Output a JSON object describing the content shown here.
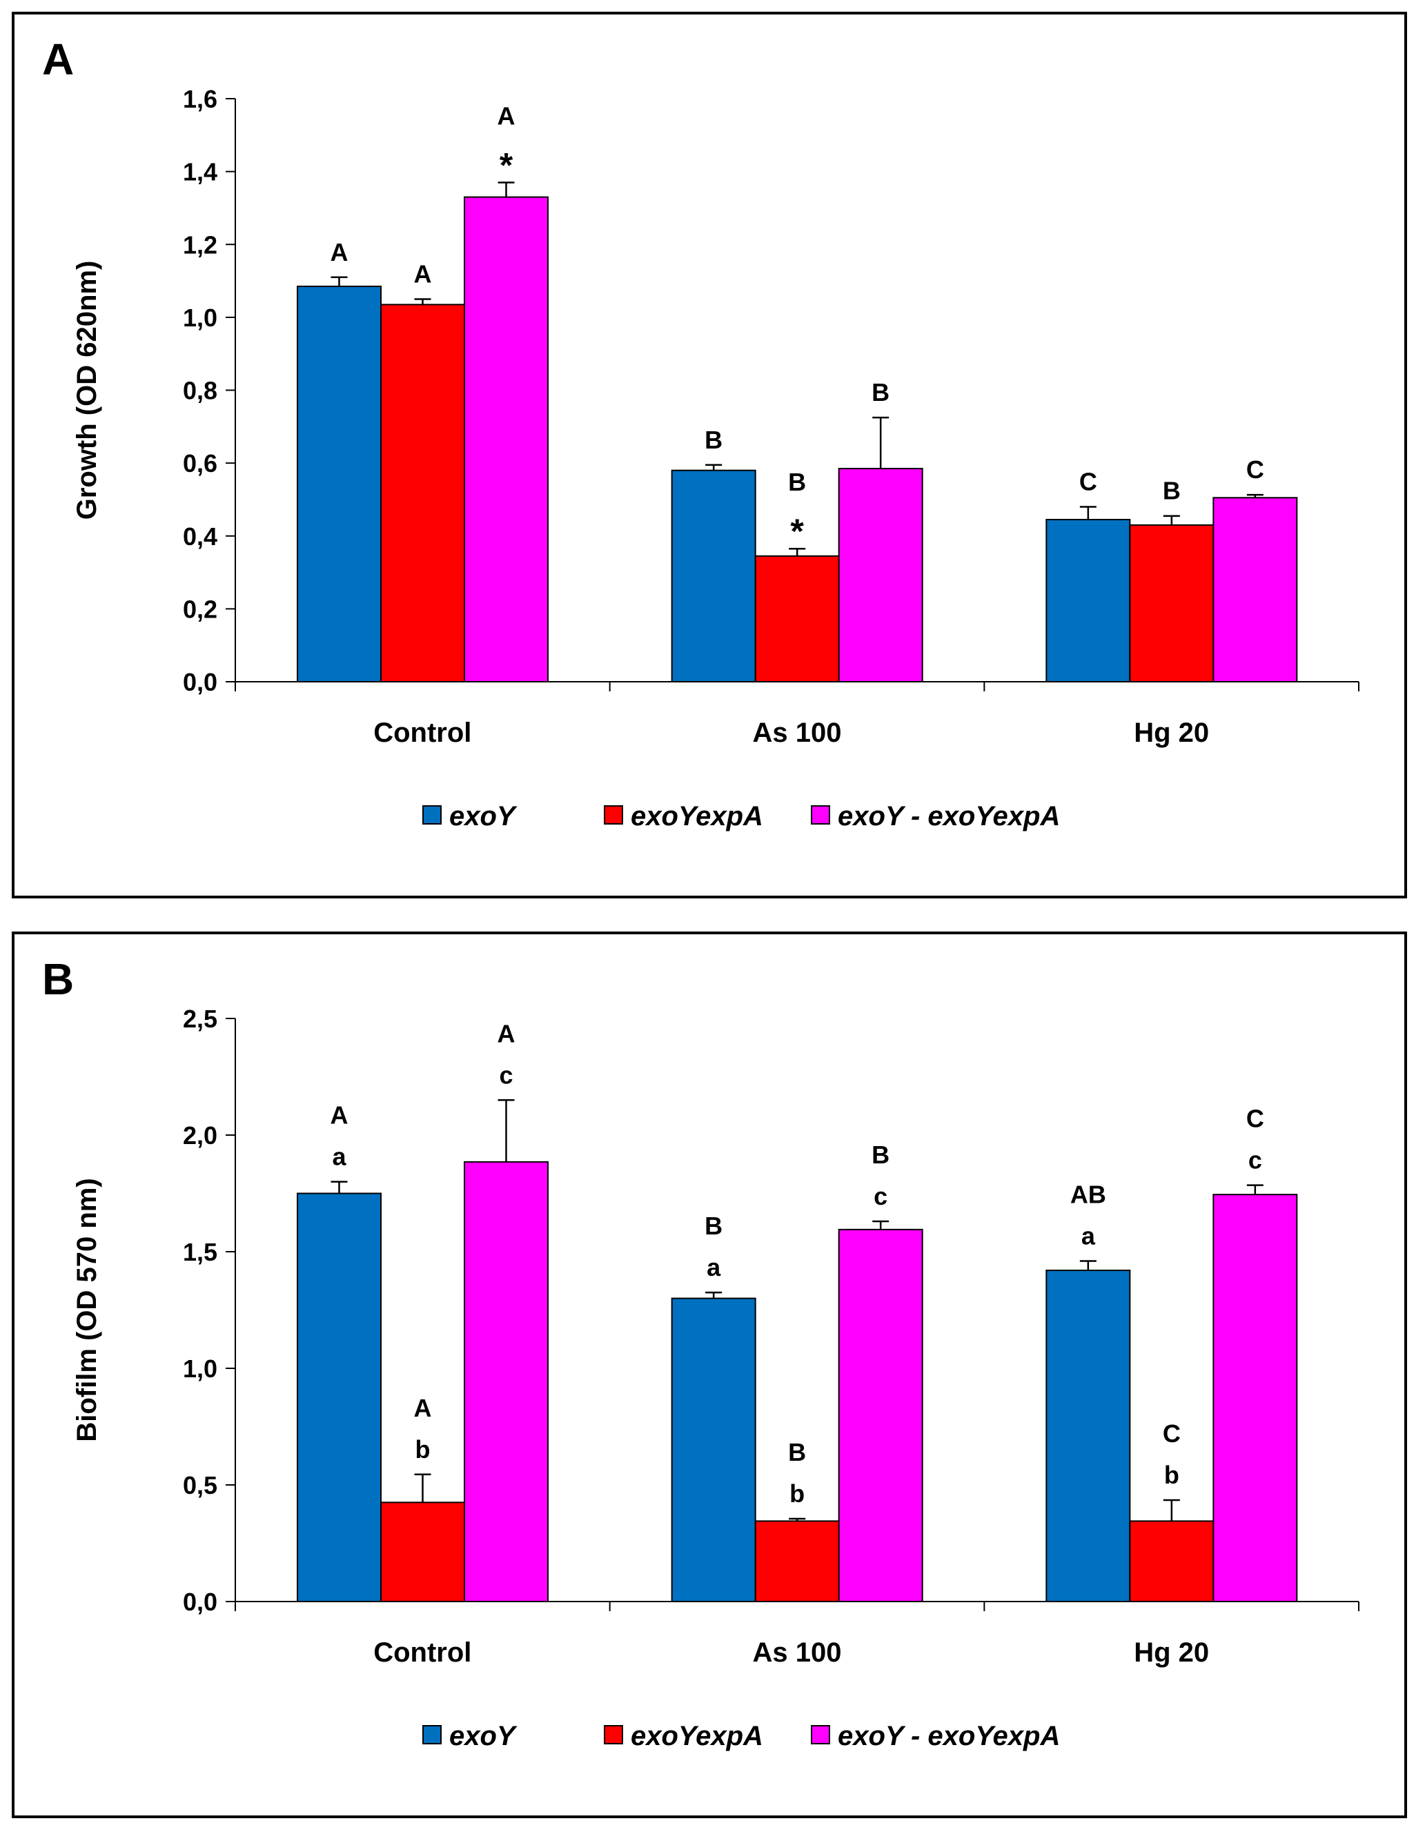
{
  "chart_data": [
    {
      "type": "bar",
      "panel_label": "A",
      "ylabel": "Growth (OD  620nm)",
      "ylim": [
        0,
        1.6
      ],
      "yticks": [
        "0,0",
        "0,2",
        "0,4",
        "0,6",
        "0,8",
        "1,0",
        "1,2",
        "1,4",
        "1,6"
      ],
      "ytick_values": [
        0,
        0.2,
        0.4,
        0.6,
        0.8,
        1.0,
        1.2,
        1.4,
        1.6
      ],
      "categories": [
        "Control",
        "As 100",
        "Hg 20"
      ],
      "series": [
        {
          "name": "exoY",
          "color": "#0070C0",
          "values": [
            1.085,
            0.58,
            0.445
          ],
          "errors": [
            0.025,
            0.015,
            0.035
          ],
          "annotations": [
            [
              "A"
            ],
            [
              "B"
            ],
            [
              "C"
            ]
          ]
        },
        {
          "name": "exoYexpA",
          "color": "#FF0000",
          "values": [
            1.035,
            0.345,
            0.43
          ],
          "errors": [
            0.015,
            0.02,
            0.025
          ],
          "annotations": [
            [
              "A"
            ],
            [
              "B",
              "*"
            ],
            [
              "B"
            ]
          ]
        },
        {
          "name": "exoY - exoYexpA",
          "color": "#FF00FF",
          "values": [
            1.33,
            0.585,
            0.505
          ],
          "errors": [
            0.04,
            0.14,
            0.008
          ],
          "annotations": [
            [
              "A",
              "*"
            ],
            [
              "B"
            ],
            [
              "C"
            ]
          ]
        }
      ],
      "legend": [
        "exoY",
        "exoYexpA",
        "exoY - exoYexpA"
      ],
      "legend_position": "bottom"
    },
    {
      "type": "bar",
      "panel_label": "B",
      "ylabel": "Biofilm (OD 570 nm)",
      "ylim": [
        0,
        2.5
      ],
      "yticks": [
        "0,0",
        "0,5",
        "1,0",
        "1,5",
        "2,0",
        "2,5"
      ],
      "ytick_values": [
        0,
        0.5,
        1.0,
        1.5,
        2.0,
        2.5
      ],
      "categories": [
        "Control",
        "As 100",
        "Hg 20"
      ],
      "series": [
        {
          "name": "exoY",
          "color": "#0070C0",
          "values": [
            1.75,
            1.3,
            1.42
          ],
          "errors": [
            0.05,
            0.025,
            0.04
          ],
          "annotations": [
            [
              "A",
              "a"
            ],
            [
              "B",
              "a"
            ],
            [
              "AB",
              "a"
            ]
          ]
        },
        {
          "name": "exoYexpA",
          "color": "#FF0000",
          "values": [
            0.425,
            0.345,
            0.345
          ],
          "errors": [
            0.12,
            0.01,
            0.09
          ],
          "annotations": [
            [
              "A",
              "b"
            ],
            [
              "B",
              "b"
            ],
            [
              "C",
              "b"
            ]
          ]
        },
        {
          "name": "exoY - exoYexpA",
          "color": "#FF00FF",
          "values": [
            1.885,
            1.595,
            1.745
          ],
          "errors": [
            0.265,
            0.035,
            0.04
          ],
          "annotations": [
            [
              "A",
              "c"
            ],
            [
              "B",
              "c"
            ],
            [
              "C",
              "c"
            ]
          ]
        }
      ],
      "legend": [
        "exoY",
        "exoYexpA",
        "exoY - exoYexpA"
      ],
      "legend_position": "bottom"
    }
  ]
}
